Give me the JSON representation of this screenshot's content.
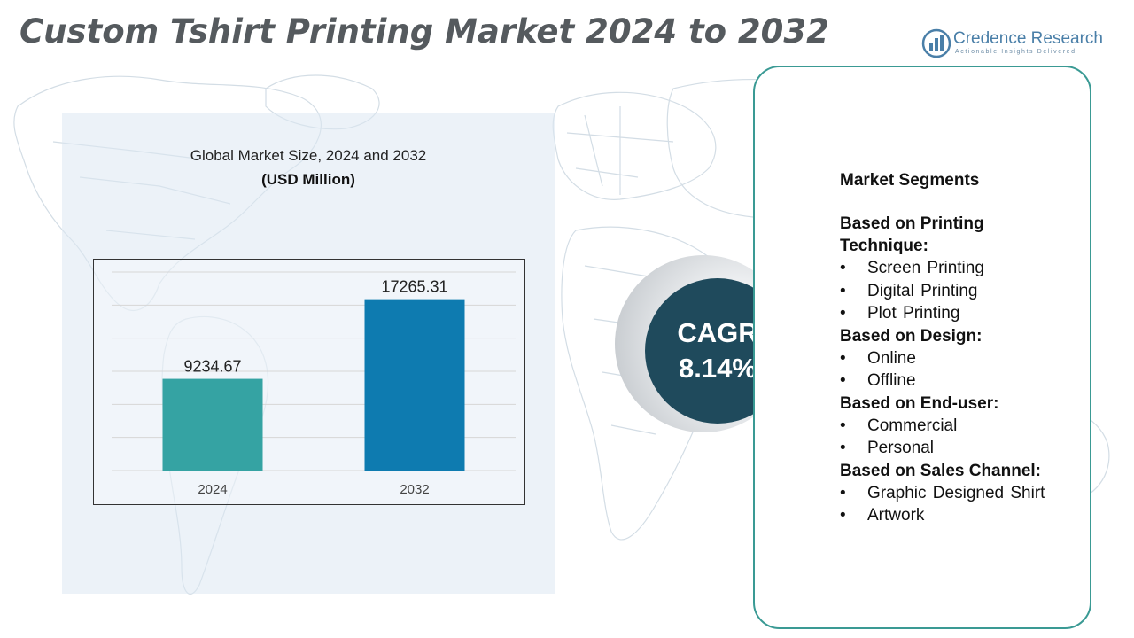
{
  "title": "Custom Tshirt Printing Market 2024 to 2032",
  "logo": {
    "icon": "bar-chart-globe-icon",
    "name": "Credence Research",
    "tagline": "Actionable Insights Delivered"
  },
  "chart_data": {
    "type": "bar",
    "title": "Global Market Size, 2024 and 2032",
    "subtitle": "(USD Million)",
    "categories": [
      "2024",
      "2032"
    ],
    "values": [
      9234.67,
      17265.31
    ],
    "value_labels": [
      "9234.67",
      "17265.31"
    ],
    "colors": [
      "#35a3a3",
      "#0e7bb0"
    ],
    "ylim": [
      0,
      20000
    ],
    "grid": true
  },
  "cagr": {
    "label": "CAGR",
    "value": "8.14%"
  },
  "segments": {
    "heading": "Market Segments",
    "bullet": "•",
    "groups": [
      {
        "title_line1": "Based on Printing",
        "title_line2": "Technique:",
        "items": [
          "Screen Printing",
          "Digital Printing",
          "Plot Printing"
        ]
      },
      {
        "title_line1": "Based on Design:",
        "items": [
          "Online",
          "Offline"
        ]
      },
      {
        "title_line1": "Based on End-user:",
        "items": [
          "Commercial",
          "Personal"
        ]
      },
      {
        "title_line1": "Based on Sales Channel:",
        "items": [
          "Graphic Designed Shirt",
          "Artwork"
        ]
      }
    ]
  },
  "colors": {
    "accent_teal": "#3a9a94",
    "cagr_dark": "#1f4a5c",
    "brand_blue": "#4a7fa8"
  }
}
